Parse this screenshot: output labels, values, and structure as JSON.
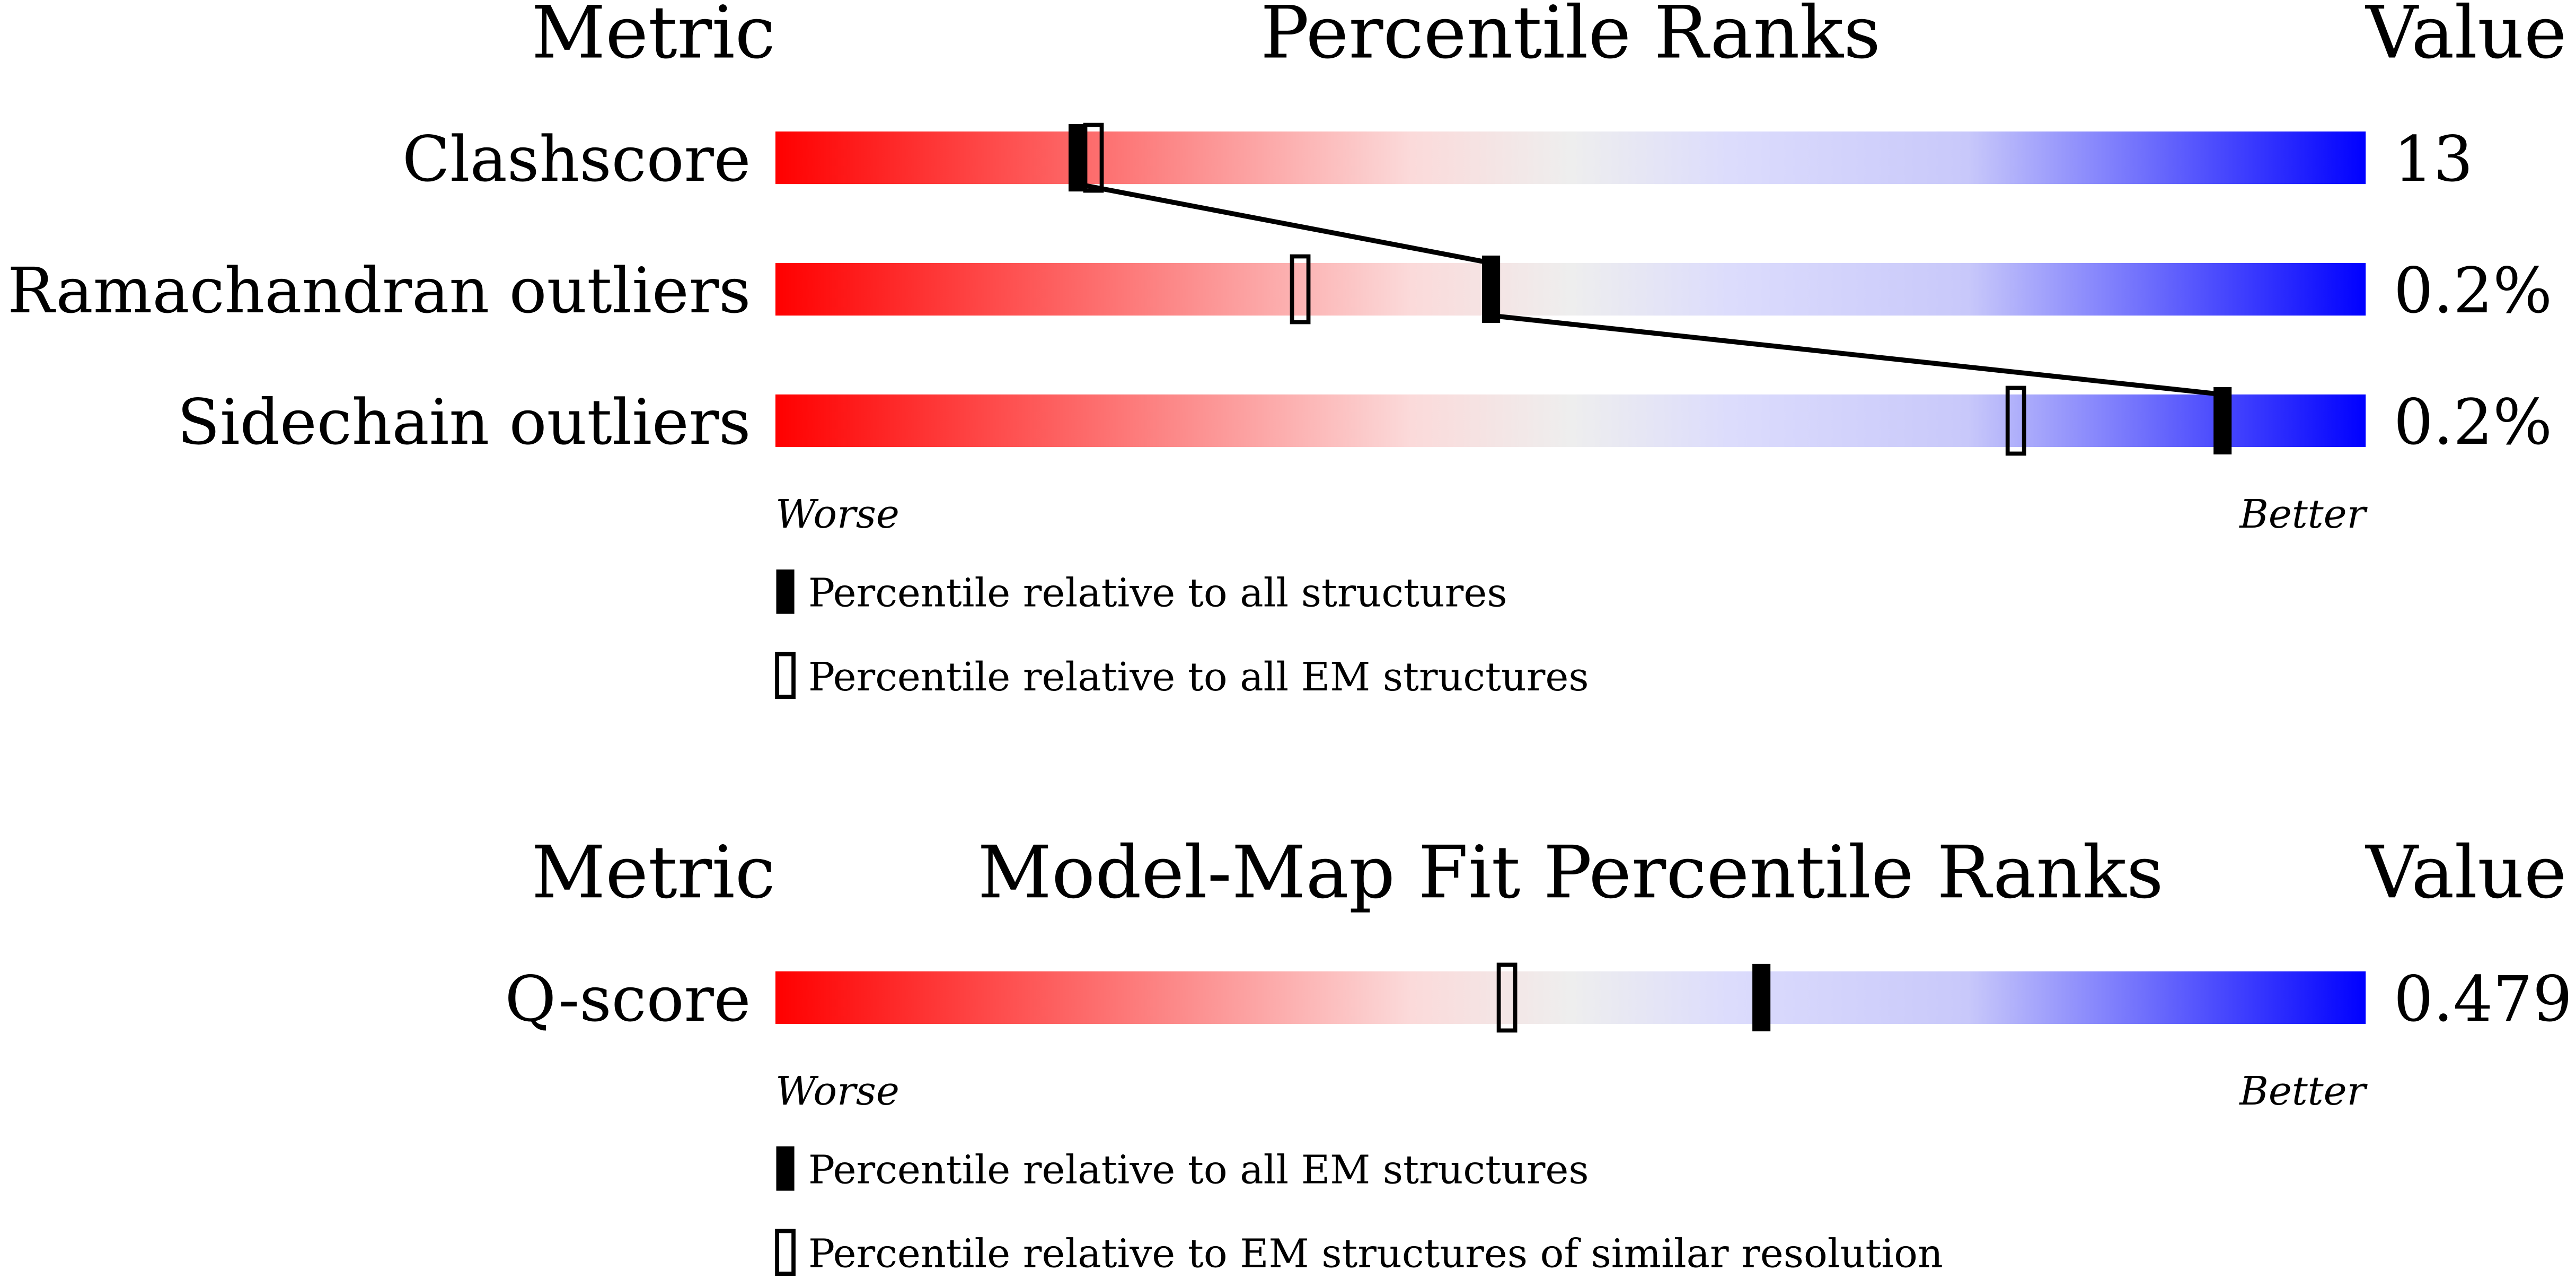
{
  "chart_data": [
    {
      "type": "percentile_slider",
      "headers": [
        "Metric",
        "Percentile Ranks",
        "Value"
      ],
      "categories": [
        "Clashscore",
        "Ramachandran outliers",
        "Sidechain outliers"
      ],
      "metric_values": [
        "13",
        "0.2%",
        "0.2%"
      ],
      "xlim": [
        0,
        100
      ],
      "connect_first_series": true,
      "series": [
        {
          "name": "Percentile relative to all structures",
          "color": "#000000",
          "filled": true,
          "values": [
            19,
            45,
            91
          ]
        },
        {
          "name": "Percentile relative to all EM structures",
          "color": "#000000",
          "filled": false,
          "values": [
            20,
            33,
            78
          ]
        }
      ],
      "worse_label": "Worse",
      "better_label": "Better"
    },
    {
      "type": "percentile_slider",
      "headers": [
        "Metric",
        "Model-Map Fit Percentile Ranks",
        "Value"
      ],
      "categories": [
        "Q-score"
      ],
      "metric_values": [
        "0.479"
      ],
      "xlim": [
        0,
        100
      ],
      "connect_first_series": false,
      "series": [
        {
          "name": "Percentile relative to all EM structures",
          "color": "#000000",
          "filled": true,
          "values": [
            62
          ]
        },
        {
          "name": "Percentile relative to EM structures of similar resolution",
          "color": "#000000",
          "filled": false,
          "values": [
            46
          ]
        }
      ],
      "worse_label": "Worse",
      "better_label": "Better"
    }
  ]
}
